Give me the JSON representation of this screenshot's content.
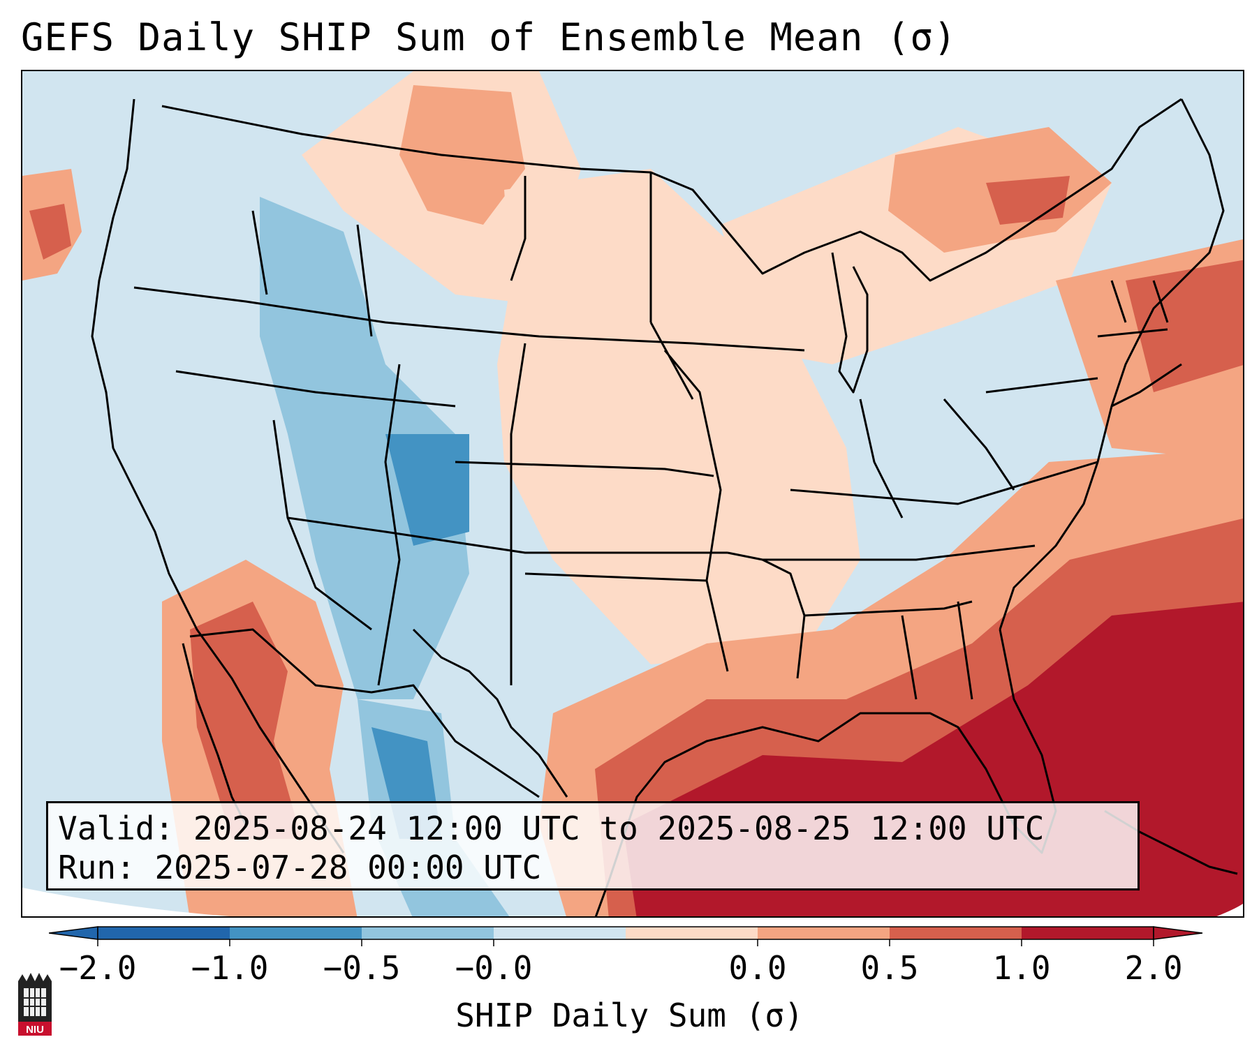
{
  "title": "GEFS Daily SHIP Sum of Ensemble Mean (σ)",
  "info": {
    "valid": "Valid: 2025-08-24 12:00 UTC to 2025-08-25 12:00 UTC",
    "run": "Run:   2025-07-28 00:00 UTC"
  },
  "colorbar": {
    "label": "SHIP Daily Sum (σ)",
    "ticks": [
      "−2.0",
      "−1.0",
      "−0.5",
      "−0.0",
      "0.0",
      "0.5",
      "1.0",
      "2.0"
    ],
    "colors": [
      "#2166ac",
      "#4393c3",
      "#92c5de",
      "#d1e5f0",
      "#fddbc7",
      "#f4a582",
      "#d6604d",
      "#b2182b"
    ],
    "extend": "both"
  },
  "map": {
    "region": "Contiguous United States",
    "background_color": "#d1e5f0",
    "border_color": "#000000"
  },
  "logo": {
    "text": "NIU",
    "color": "#c8102e"
  }
}
